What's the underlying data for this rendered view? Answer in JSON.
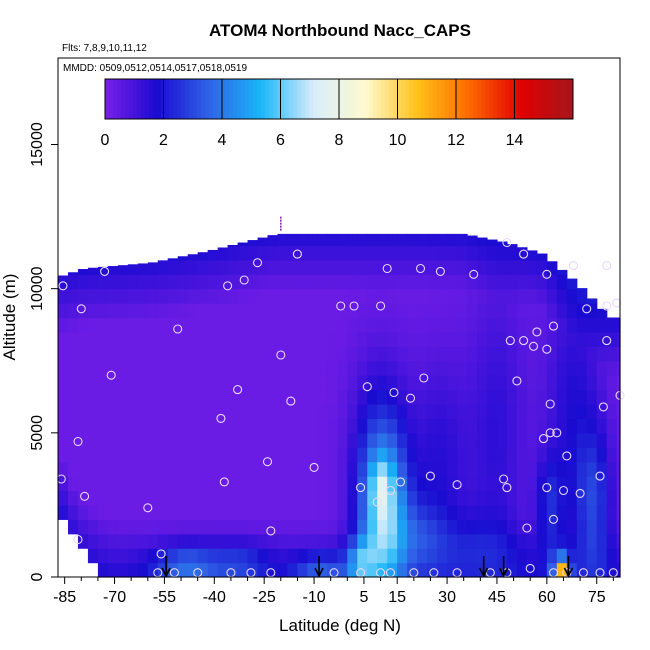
{
  "chart_data": {
    "type": "heatmap",
    "title": "ATOM4 Northbound Nacc_CAPS",
    "annotations": [
      "Flts: 7,8,9,10,11,12",
      "MMDD: 0509,0512,0514,0517,0518,0519"
    ],
    "xlabel": "Latitude (deg N)",
    "ylabel": "Altitude (m)",
    "xlim": [
      -87,
      82
    ],
    "ylim": [
      0,
      18000
    ],
    "x_ticks": [
      -85,
      -70,
      -55,
      -40,
      -25,
      -10,
      5,
      15,
      30,
      45,
      60,
      75
    ],
    "x_tick_labels": [
      "-85",
      "-70",
      "-55",
      "-40",
      "-25",
      "-10",
      "5",
      "15",
      "30",
      "45",
      "60",
      "75"
    ],
    "y_ticks": [
      0,
      5000,
      10000,
      15000
    ],
    "y_tick_labels": [
      "0",
      "5000",
      "10000",
      "15000"
    ],
    "colorbar": {
      "ticks": [
        0,
        2,
        4,
        6,
        8,
        10,
        12,
        14
      ],
      "tick_labels": [
        "0",
        "2",
        "4",
        "6",
        "8",
        "10",
        "12",
        "14"
      ],
      "range": [
        0,
        16
      ],
      "colors": [
        "#7b1fe8",
        "#1a0bd1",
        "#2f63e6",
        "#19b6f8",
        "#d7ecfb",
        "#fffad0",
        "#ffc21a",
        "#ff6a00",
        "#e00000",
        "#a4161c"
      ]
    },
    "cell_width_deg": 3,
    "cell_height_m": 500,
    "upper_envelope_m": [
      [
        -87,
        10400
      ],
      [
        -79,
        10700
      ],
      [
        -59,
        10900
      ],
      [
        -42,
        11300
      ],
      [
        -21,
        11900
      ],
      [
        35,
        11900
      ],
      [
        48,
        11600
      ],
      [
        59,
        11200
      ],
      [
        69,
        10200
      ],
      [
        79,
        9000
      ]
    ],
    "lower_envelope_m": [
      [
        -87,
        2600
      ],
      [
        -84,
        1600
      ],
      [
        -79,
        700
      ],
      [
        -75,
        300
      ],
      [
        -69,
        0
      ],
      [
        79,
        0
      ]
    ],
    "field": {
      "background": 0.3,
      "features": [
        {
          "x": 11,
          "y": 2000,
          "sx": 5,
          "sy": 1800,
          "value": 5.5
        },
        {
          "x": 10,
          "y": 4500,
          "sx": 6,
          "sy": 2200,
          "value": 1.8
        },
        {
          "x": 10,
          "y": 3200,
          "sx": 2,
          "sy": 600,
          "value": 1.5
        },
        {
          "x": 4,
          "y": 500,
          "sx": 3,
          "sy": 600,
          "value": 3.0
        },
        {
          "x": 22,
          "y": 1500,
          "sx": 5,
          "sy": 900,
          "value": 1.5
        },
        {
          "x": 28,
          "y": 4000,
          "sx": 6,
          "sy": 2500,
          "value": 1.2
        },
        {
          "x": 45,
          "y": 5000,
          "sx": 6,
          "sy": 3500,
          "value": 1.1
        },
        {
          "x": 68,
          "y": 6000,
          "sx": 6,
          "sy": 3000,
          "value": 1.3
        },
        {
          "x": 74,
          "y": 2500,
          "sx": 4,
          "sy": 1800,
          "value": 2.3
        },
        {
          "x": 61,
          "y": 2500,
          "sx": 3,
          "sy": 1200,
          "value": 1.8
        },
        {
          "x": 64,
          "y": 300,
          "sx": 2,
          "sy": 400,
          "value": 3.5
        },
        {
          "x": 65,
          "y": 150,
          "sx": 1,
          "sy": 250,
          "value": 7.0
        },
        {
          "x": -48,
          "y": 400,
          "sx": 7,
          "sy": 500,
          "value": 2.5
        },
        {
          "x": -32,
          "y": 500,
          "sx": 6,
          "sy": 500,
          "value": 1.5
        },
        {
          "x": -8,
          "y": 300,
          "sx": 6,
          "sy": 400,
          "value": 2.0
        },
        {
          "x": 38,
          "y": 1200,
          "sx": 10,
          "sy": 900,
          "value": 1.0
        }
      ],
      "edge_boost": {
        "band_m": 2000,
        "value": 1.3
      }
    },
    "sample_points": [
      [
        -85.5,
        10100
      ],
      [
        -80,
        9300
      ],
      [
        -73,
        10600
      ],
      [
        -71,
        7000
      ],
      [
        -81,
        4700
      ],
      [
        -86,
        3400
      ],
      [
        -79,
        2800
      ],
      [
        -81,
        1300
      ],
      [
        -60,
        2400
      ],
      [
        -56,
        800
      ],
      [
        -57,
        150
      ],
      [
        -52,
        150
      ],
      [
        -45,
        150
      ],
      [
        -35,
        150
      ],
      [
        -29,
        150
      ],
      [
        -23,
        150
      ],
      [
        -51,
        8600
      ],
      [
        -36,
        10100
      ],
      [
        -31,
        10300
      ],
      [
        -27,
        10900
      ],
      [
        -15,
        11200
      ],
      [
        -20,
        7700
      ],
      [
        -33,
        6500
      ],
      [
        -38,
        5500
      ],
      [
        -37,
        3300
      ],
      [
        -17,
        6100
      ],
      [
        -24,
        4000
      ],
      [
        -10,
        3800
      ],
      [
        -23,
        1600
      ],
      [
        -2,
        9400
      ],
      [
        2,
        9400
      ],
      [
        10,
        9400
      ],
      [
        12,
        10700
      ],
      [
        22,
        10700
      ],
      [
        28,
        10600
      ],
      [
        38,
        10500
      ],
      [
        6,
        6600
      ],
      [
        14,
        6400
      ],
      [
        19,
        6200
      ],
      [
        23,
        6900
      ],
      [
        4,
        3100
      ],
      [
        9,
        2600
      ],
      [
        13,
        3000
      ],
      [
        16,
        3300
      ],
      [
        25,
        3500
      ],
      [
        33,
        3200
      ],
      [
        4,
        150
      ],
      [
        10,
        150
      ],
      [
        13,
        150
      ],
      [
        20,
        150
      ],
      [
        26,
        150
      ],
      [
        33,
        150
      ],
      [
        43,
        150
      ],
      [
        48,
        150
      ],
      [
        55,
        300
      ],
      [
        -4,
        150
      ],
      [
        48,
        11600
      ],
      [
        53,
        11200
      ],
      [
        60,
        10500
      ],
      [
        68,
        10800
      ],
      [
        78,
        10800
      ],
      [
        72,
        9300
      ],
      [
        78,
        9400
      ],
      [
        81,
        9500
      ],
      [
        62,
        8700
      ],
      [
        57,
        8500
      ],
      [
        53,
        8200
      ],
      [
        49,
        8200
      ],
      [
        56,
        8000
      ],
      [
        60,
        7900
      ],
      [
        78,
        8200
      ],
      [
        51,
        6800
      ],
      [
        61,
        6000
      ],
      [
        77,
        5900
      ],
      [
        82,
        6300
      ],
      [
        59,
        4800
      ],
      [
        61,
        5000
      ],
      [
        63,
        5000
      ],
      [
        66,
        4200
      ],
      [
        76,
        3500
      ],
      [
        47,
        3400
      ],
      [
        48,
        3100
      ],
      [
        60,
        3100
      ],
      [
        65,
        3000
      ],
      [
        70,
        2900
      ],
      [
        62,
        2000
      ],
      [
        54,
        1700
      ],
      [
        62,
        150
      ],
      [
        66,
        150
      ],
      [
        71,
        150
      ],
      [
        76,
        150
      ],
      [
        80,
        150
      ]
    ],
    "arrow_latitudes": [
      -54.5,
      -8.5,
      41,
      47,
      66.5
    ],
    "flight_marker": {
      "x": -20,
      "y_range": [
        12000,
        12500
      ],
      "color": "#7a1fb5"
    }
  }
}
